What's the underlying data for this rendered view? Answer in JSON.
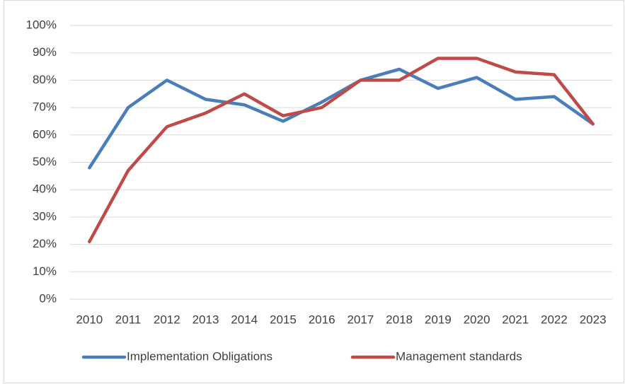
{
  "chart_data": {
    "type": "line",
    "categories": [
      "2010",
      "2011",
      "2012",
      "2013",
      "2014",
      "2015",
      "2016",
      "2017",
      "2018",
      "2019",
      "2020",
      "2021",
      "2022",
      "2023"
    ],
    "series": [
      {
        "name": "Implementation Obligations",
        "color": "#4a7ebb",
        "values": [
          48,
          70,
          80,
          73,
          71,
          65,
          72,
          80,
          84,
          77,
          81,
          73,
          74,
          64
        ]
      },
      {
        "name": "Management standards",
        "color": "#be4b48",
        "values": [
          21,
          47,
          63,
          68,
          75,
          67,
          70,
          80,
          80,
          88,
          88,
          83,
          82,
          64
        ]
      }
    ],
    "ylim": [
      0,
      100
    ],
    "yticks": [
      {
        "value": 0,
        "label": "0%"
      },
      {
        "value": 10,
        "label": "10%"
      },
      {
        "value": 20,
        "label": "20%"
      },
      {
        "value": 30,
        "label": "30%"
      },
      {
        "value": 40,
        "label": "40%"
      },
      {
        "value": 50,
        "label": "50%"
      },
      {
        "value": 60,
        "label": "60%"
      },
      {
        "value": 70,
        "label": "70%"
      },
      {
        "value": 80,
        "label": "80%"
      },
      {
        "value": 90,
        "label": "90%"
      },
      {
        "value": 100,
        "label": "100%"
      }
    ],
    "grid": true,
    "legend": "bottom"
  }
}
